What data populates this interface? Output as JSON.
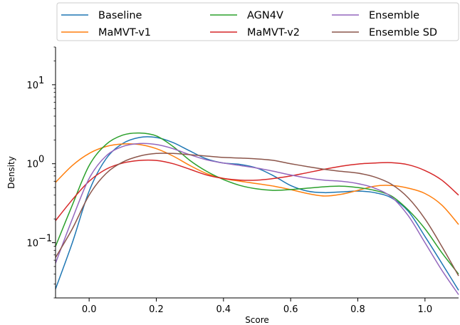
{
  "chart_data": {
    "type": "line",
    "title": "",
    "xlabel": "Score",
    "ylabel": "Density",
    "xlim": [
      -0.1,
      1.1
    ],
    "ylim": [
      0.02,
      30
    ],
    "yscale": "log",
    "grid": false,
    "legend_position": "top",
    "x_ticks": [
      0.0,
      0.2,
      0.4,
      0.6,
      0.8,
      1.0
    ],
    "x_tick_labels": [
      "0.0",
      "0.2",
      "0.4",
      "0.6",
      "0.8",
      "1.0"
    ],
    "y_ticks": [
      0.1,
      1,
      10
    ],
    "y_tick_labels": [
      "10",
      "10",
      "10"
    ],
    "y_tick_exponents": [
      "−1",
      "0",
      "1"
    ],
    "series": [
      {
        "name": "Baseline",
        "color": "#1f77b4",
        "x": [
          -0.1,
          -0.05,
          0.0,
          0.05,
          0.1,
          0.15,
          0.2,
          0.25,
          0.3,
          0.35,
          0.4,
          0.45,
          0.5,
          0.55,
          0.6,
          0.65,
          0.7,
          0.75,
          0.8,
          0.85,
          0.9,
          0.95,
          1.0,
          1.05,
          1.1
        ],
        "y": [
          0.026,
          0.1,
          0.45,
          1.15,
          1.8,
          2.15,
          2.15,
          1.85,
          1.45,
          1.15,
          1.02,
          0.98,
          0.88,
          0.7,
          0.53,
          0.45,
          0.43,
          0.44,
          0.45,
          0.43,
          0.37,
          0.25,
          0.12,
          0.055,
          0.025
        ]
      },
      {
        "name": "MaMVT-v1",
        "color": "#ff7f0e",
        "x": [
          -0.1,
          -0.05,
          0.0,
          0.05,
          0.1,
          0.15,
          0.2,
          0.25,
          0.3,
          0.35,
          0.4,
          0.45,
          0.5,
          0.55,
          0.6,
          0.65,
          0.7,
          0.75,
          0.8,
          0.85,
          0.9,
          0.95,
          1.0,
          1.05,
          1.1
        ],
        "y": [
          0.58,
          0.95,
          1.35,
          1.65,
          1.78,
          1.75,
          1.55,
          1.25,
          0.95,
          0.75,
          0.65,
          0.6,
          0.56,
          0.52,
          0.47,
          0.42,
          0.39,
          0.41,
          0.46,
          0.52,
          0.53,
          0.49,
          0.42,
          0.3,
          0.17
        ]
      },
      {
        "name": "AGN4V",
        "color": "#2ca02c",
        "x": [
          -0.1,
          -0.05,
          0.0,
          0.05,
          0.1,
          0.15,
          0.2,
          0.25,
          0.3,
          0.35,
          0.4,
          0.45,
          0.5,
          0.55,
          0.6,
          0.65,
          0.7,
          0.75,
          0.8,
          0.85,
          0.9,
          0.95,
          1.0,
          1.05,
          1.1
        ],
        "y": [
          0.09,
          0.3,
          0.95,
          1.75,
          2.3,
          2.45,
          2.25,
          1.65,
          1.1,
          0.8,
          0.63,
          0.53,
          0.48,
          0.46,
          0.47,
          0.49,
          0.51,
          0.52,
          0.5,
          0.46,
          0.39,
          0.26,
          0.15,
          0.075,
          0.04
        ]
      },
      {
        "name": "MaMVT-v2",
        "color": "#d62728",
        "x": [
          -0.1,
          -0.05,
          0.0,
          0.05,
          0.1,
          0.15,
          0.2,
          0.25,
          0.3,
          0.35,
          0.4,
          0.45,
          0.5,
          0.55,
          0.6,
          0.65,
          0.7,
          0.75,
          0.8,
          0.85,
          0.9,
          0.95,
          1.0,
          1.05,
          1.1
        ],
        "y": [
          0.19,
          0.35,
          0.6,
          0.85,
          1.02,
          1.1,
          1.1,
          1.0,
          0.85,
          0.72,
          0.65,
          0.62,
          0.62,
          0.65,
          0.7,
          0.77,
          0.85,
          0.93,
          0.99,
          1.02,
          1.03,
          0.97,
          0.82,
          0.62,
          0.4
        ]
      },
      {
        "name": "Ensemble",
        "color": "#9467bd",
        "x": [
          -0.1,
          -0.05,
          0.0,
          0.05,
          0.1,
          0.15,
          0.2,
          0.25,
          0.3,
          0.35,
          0.4,
          0.45,
          0.5,
          0.55,
          0.6,
          0.65,
          0.7,
          0.75,
          0.8,
          0.85,
          0.9,
          0.95,
          1.0,
          1.05,
          1.1
        ],
        "y": [
          0.055,
          0.2,
          0.65,
          1.25,
          1.65,
          1.8,
          1.75,
          1.55,
          1.3,
          1.12,
          1.02,
          0.95,
          0.88,
          0.8,
          0.72,
          0.66,
          0.62,
          0.6,
          0.56,
          0.49,
          0.38,
          0.22,
          0.1,
          0.045,
          0.022
        ]
      },
      {
        "name": "Ensemble SD",
        "color": "#8c564b",
        "x": [
          -0.1,
          -0.05,
          0.0,
          0.05,
          0.1,
          0.15,
          0.2,
          0.25,
          0.3,
          0.35,
          0.4,
          0.45,
          0.5,
          0.55,
          0.6,
          0.65,
          0.7,
          0.75,
          0.8,
          0.85,
          0.9,
          0.95,
          1.0,
          1.05,
          1.1
        ],
        "y": [
          0.065,
          0.15,
          0.4,
          0.75,
          1.05,
          1.25,
          1.35,
          1.35,
          1.3,
          1.25,
          1.2,
          1.18,
          1.15,
          1.1,
          1.0,
          0.92,
          0.85,
          0.8,
          0.76,
          0.68,
          0.55,
          0.37,
          0.2,
          0.09,
          0.038
        ]
      }
    ]
  }
}
